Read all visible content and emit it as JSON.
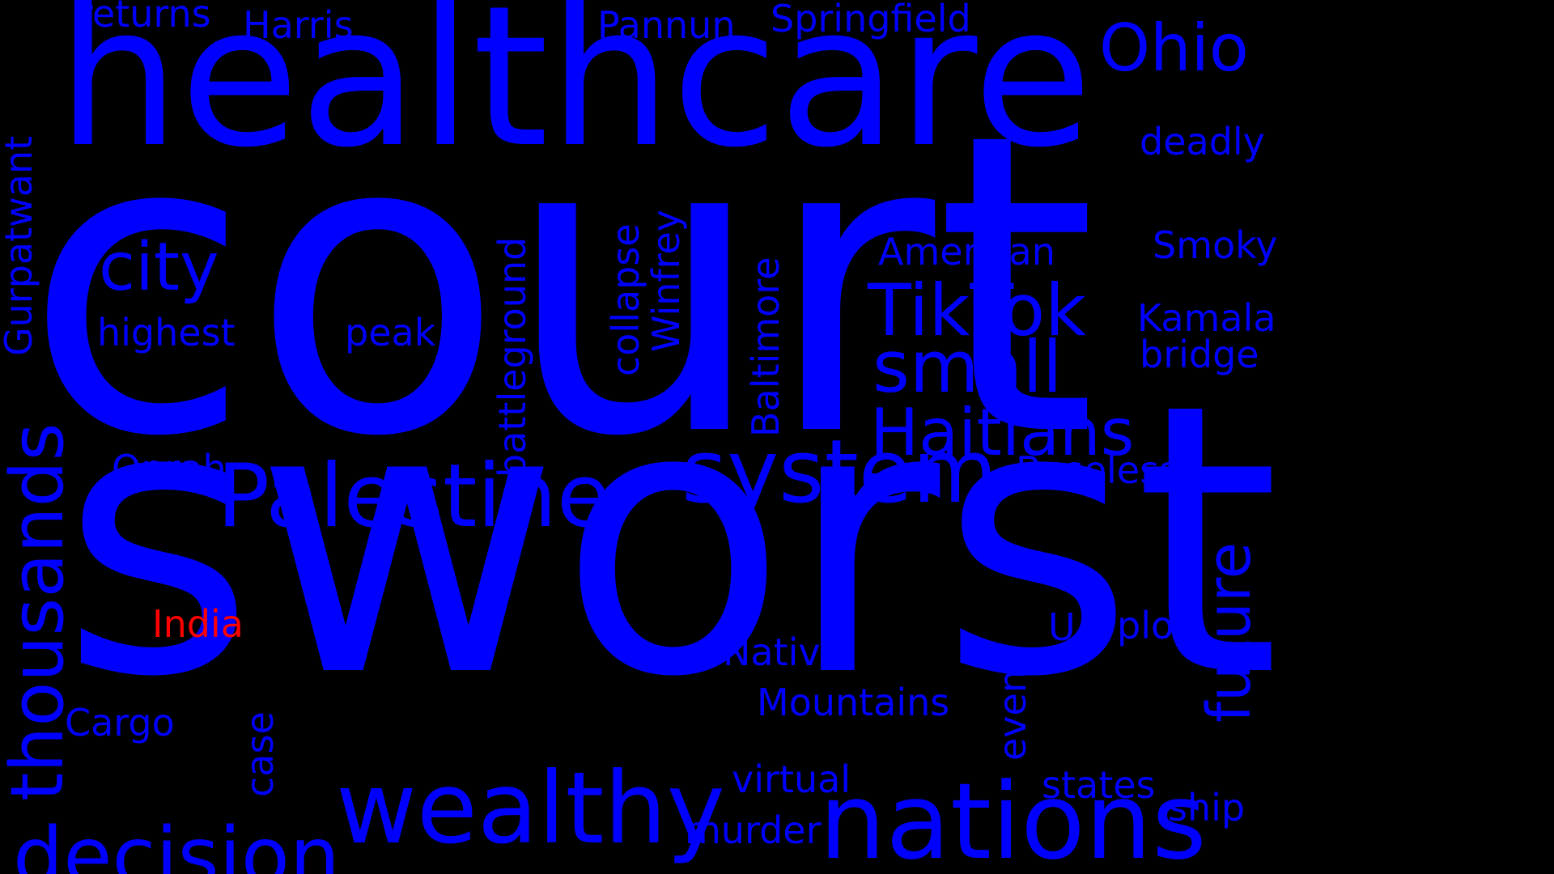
{
  "colors": {
    "background": "#000000",
    "word": "#0000ff",
    "highlight": "#ff0000"
  },
  "words": {
    "court": "court",
    "sworst": "sworst",
    "healthcare": "healthcare",
    "nations": "nations",
    "wealthy": "wealthy",
    "palestine": "Palestine",
    "system": "system",
    "decision": "decision",
    "thousands": "thousands",
    "tiktok": "TikTok",
    "small": "small",
    "haitians": "Haitians",
    "ohio": "Ohio",
    "city": "city",
    "future": "future",
    "springfield": "Springfield",
    "pannun": "Pannun",
    "harris": "Harris",
    "returns": "returns",
    "deadly": "deadly",
    "smoky": "Smoky",
    "kamala": "Kamala",
    "bridge": "bridge",
    "american": "American",
    "baseless": "Baseless",
    "highest": "highest",
    "peak": "peak",
    "oprah": "Oprah",
    "india": "India",
    "cargo": "Cargo",
    "native": "Native",
    "mountains": "Mountains",
    "virtual": "virtual",
    "murder": "murder",
    "states": "states",
    "ship": "ship",
    "plot": "plot",
    "u": "U",
    "gurpatwant": "Gurpatwant",
    "battleground": "battleground",
    "collapse": "collapse",
    "winfrey": "Winfrey",
    "baltimore": "Baltimore",
    "case": "case",
    "event": "event"
  }
}
